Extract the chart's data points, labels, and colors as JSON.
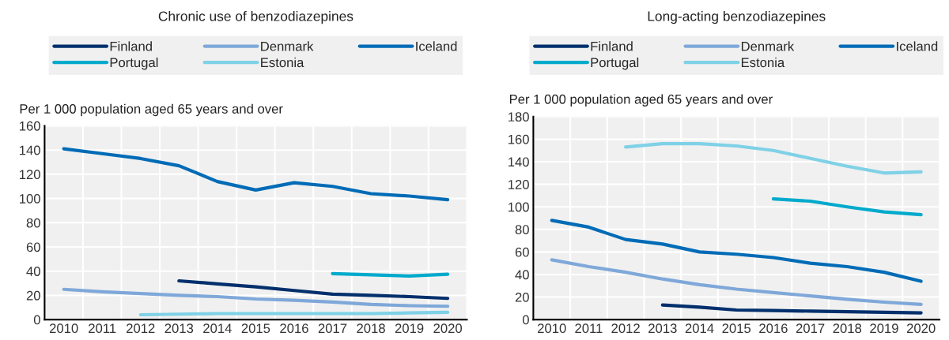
{
  "chart_data": [
    {
      "type": "line",
      "title": "Chronic use of benzodiazepines",
      "ylabel": "Per 1 000 population aged 65 years and over",
      "categories": [
        "2010",
        "2011",
        "2012",
        "2013",
        "2014",
        "2015",
        "2016",
        "2017",
        "2018",
        "2019",
        "2020"
      ],
      "ylim": [
        0,
        160
      ],
      "yticks": [
        0,
        20,
        40,
        60,
        80,
        100,
        120,
        140,
        160
      ],
      "grid": true,
      "legend": "top",
      "line_style": "solid",
      "series": [
        {
          "name": "Finland",
          "color": "#002f6c",
          "values": [
            null,
            null,
            null,
            32,
            29.5,
            27,
            24,
            21,
            20,
            19,
            17.5
          ]
        },
        {
          "name": "Denmark",
          "color": "#7fa8d9",
          "values": [
            25,
            23,
            21.5,
            20,
            19,
            17,
            16,
            14.5,
            12.5,
            11.5,
            11
          ]
        },
        {
          "name": "Iceland",
          "color": "#006bb6",
          "values": [
            141,
            137,
            133,
            127,
            114,
            107,
            113,
            110,
            104,
            102,
            99
          ]
        },
        {
          "name": "Portugal",
          "color": "#00aacc",
          "values": [
            null,
            null,
            null,
            null,
            null,
            null,
            null,
            38,
            37,
            36,
            37.5
          ]
        },
        {
          "name": "Estonia",
          "color": "#7fd1e6",
          "values": [
            null,
            null,
            4,
            4.5,
            5,
            5,
            5,
            5,
            5,
            5.5,
            6
          ]
        }
      ]
    },
    {
      "type": "line",
      "title": "Long-acting benzodiazepines",
      "ylabel": "Per 1 000 population aged 65 years and over",
      "categories": [
        "2010",
        "2011",
        "2012",
        "2013",
        "2014",
        "2015",
        "2016",
        "2017",
        "2018",
        "2019",
        "2020"
      ],
      "ylim": [
        0,
        180
      ],
      "yticks": [
        0,
        20,
        40,
        60,
        80,
        100,
        120,
        140,
        160,
        180
      ],
      "grid": true,
      "legend": "top",
      "line_style": "solid",
      "series": [
        {
          "name": "Finland",
          "color": "#002f6c",
          "values": [
            null,
            null,
            null,
            13,
            11,
            8.5,
            8,
            7.5,
            7,
            6.5,
            6
          ]
        },
        {
          "name": "Denmark",
          "color": "#7fa8d9",
          "values": [
            53,
            47,
            42,
            36,
            31,
            27,
            24,
            21,
            18,
            15.5,
            13.5
          ]
        },
        {
          "name": "Iceland",
          "color": "#006bb6",
          "values": [
            88,
            82,
            71,
            67,
            60,
            58,
            55,
            50,
            47,
            42,
            34
          ]
        },
        {
          "name": "Portugal",
          "color": "#00aacc",
          "values": [
            null,
            null,
            null,
            null,
            null,
            null,
            107,
            105,
            100,
            95.5,
            93
          ]
        },
        {
          "name": "Estonia",
          "color": "#7fd1e6",
          "values": [
            null,
            null,
            153,
            156,
            156,
            154,
            150,
            143,
            136,
            130,
            131
          ]
        }
      ]
    }
  ]
}
